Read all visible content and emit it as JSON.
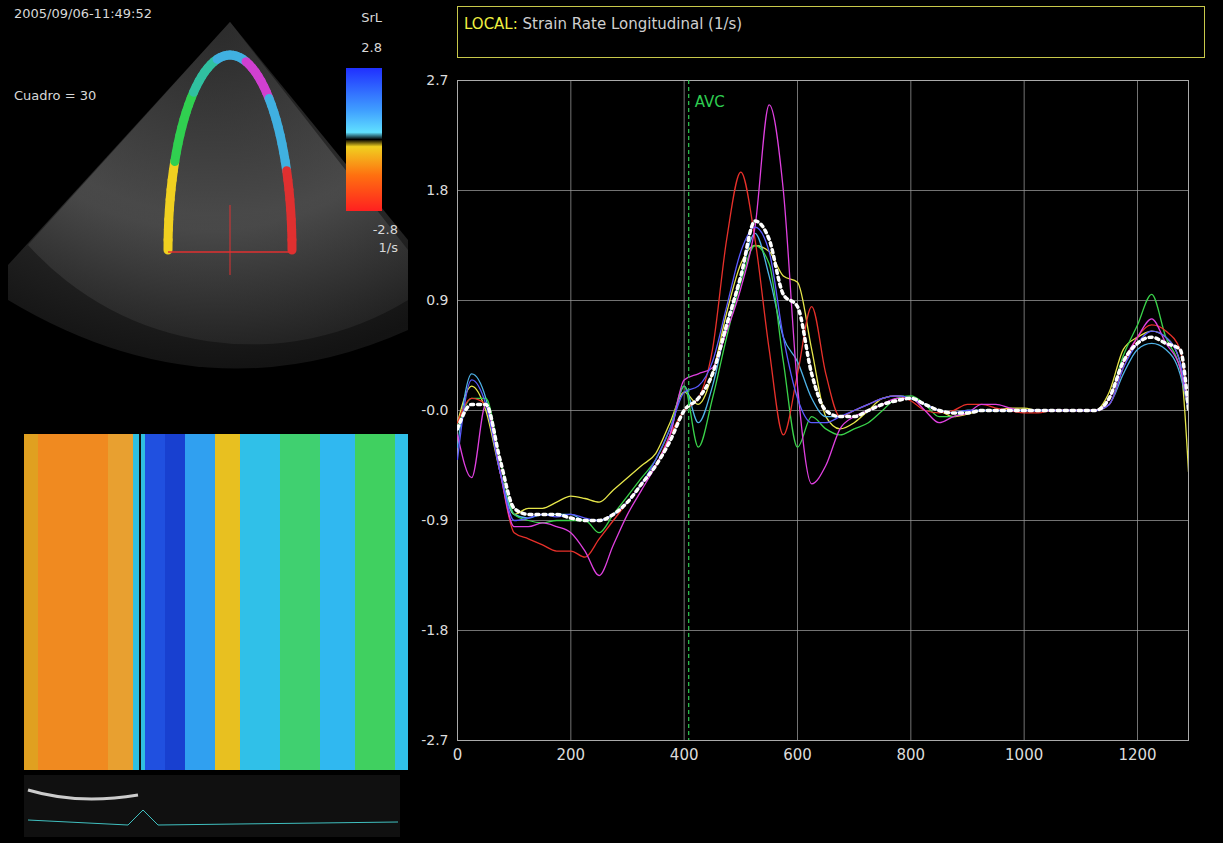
{
  "chart_data": {
    "type": "line",
    "title": "LOCAL: Strain Rate Longitudinal (1/s)",
    "xlim": [
      0,
      1290
    ],
    "xticks": [
      0,
      200,
      400,
      600,
      800,
      1000,
      1200
    ],
    "ylim": [
      -2.7,
      2.7
    ],
    "yticks": [
      -2.7,
      -1.8,
      -0.9,
      {
        "value": 0,
        "label": "-0.0"
      },
      0.9,
      1.8,
      2.7
    ],
    "grid": true,
    "x": [
      0,
      25,
      50,
      75,
      100,
      125,
      150,
      175,
      200,
      225,
      250,
      275,
      300,
      325,
      350,
      375,
      400,
      425,
      450,
      475,
      500,
      525,
      550,
      575,
      600,
      625,
      650,
      675,
      700,
      725,
      750,
      775,
      800,
      825,
      850,
      875,
      900,
      925,
      950,
      975,
      1000,
      1025,
      1050,
      1075,
      1100,
      1125,
      1150,
      1175,
      1200,
      1225,
      1250,
      1275,
      1290
    ],
    "series": [
      {
        "color": "#e6e64a",
        "values": [
          -0.1,
          0.2,
          0.0,
          -0.5,
          -0.85,
          -0.8,
          -0.8,
          -0.75,
          -0.7,
          -0.72,
          -0.75,
          -0.65,
          -0.55,
          -0.45,
          -0.35,
          -0.1,
          0.15,
          0.05,
          0.3,
          0.8,
          1.2,
          1.35,
          1.3,
          1.1,
          1.05,
          0.5,
          -0.05,
          -0.15,
          -0.1,
          0.0,
          0.1,
          0.12,
          0.1,
          0.05,
          0.0,
          -0.05,
          -0.03,
          0,
          0,
          0.02,
          0.02,
          0,
          0,
          0,
          0,
          0,
          0.15,
          0.5,
          0.6,
          0.65,
          0.6,
          0.4,
          -0.5
        ]
      },
      {
        "color": "#4fb3e8",
        "values": [
          -0.3,
          0.3,
          0.1,
          -0.5,
          -0.85,
          -0.88,
          -0.85,
          -0.85,
          -0.85,
          -0.9,
          -0.9,
          -0.85,
          -0.75,
          -0.6,
          -0.45,
          -0.2,
          0.2,
          -0.1,
          0.2,
          0.7,
          1.1,
          1.45,
          1.1,
          0.6,
          0.4,
          0.1,
          -0.05,
          -0.05,
          0.0,
          0.05,
          0.1,
          0.12,
          0.1,
          0.05,
          0,
          -0.02,
          0,
          0,
          0,
          0,
          0,
          0,
          0,
          0,
          0,
          0,
          0.05,
          0.3,
          0.5,
          0.55,
          0.5,
          0.3,
          0.0
        ]
      },
      {
        "color": "#3ad24a",
        "values": [
          -0.15,
          0.1,
          0.1,
          -0.4,
          -0.85,
          -0.9,
          -0.92,
          -0.9,
          -0.9,
          -0.9,
          -1.0,
          -0.85,
          -0.7,
          -0.55,
          -0.4,
          -0.15,
          0.2,
          -0.3,
          0.1,
          0.6,
          1.05,
          1.35,
          1.2,
          0.4,
          -0.3,
          -0.05,
          -0.15,
          -0.2,
          -0.15,
          -0.1,
          0.0,
          0.1,
          0.12,
          0.05,
          -0.05,
          -0.05,
          0,
          0,
          0,
          0,
          0,
          0,
          0,
          0,
          0,
          0,
          0.1,
          0.45,
          0.7,
          0.95,
          0.6,
          0.35,
          0.0
        ]
      },
      {
        "color": "#e8302a",
        "values": [
          -0.1,
          0.1,
          0.05,
          -0.5,
          -1.0,
          -1.05,
          -1.1,
          -1.15,
          -1.15,
          -1.2,
          -1.05,
          -0.9,
          -0.75,
          -0.6,
          -0.45,
          -0.2,
          0.0,
          0.1,
          0.5,
          1.4,
          1.95,
          1.4,
          0.5,
          -0.2,
          0.3,
          0.85,
          0.3,
          -0.05,
          0.0,
          0.05,
          0.1,
          0.12,
          0.08,
          0.0,
          -0.02,
          0.0,
          0.05,
          0.05,
          0.02,
          0,
          -0.02,
          -0.02,
          0,
          0,
          0,
          0,
          0.05,
          0.35,
          0.6,
          0.7,
          0.65,
          0.5,
          0.0
        ]
      },
      {
        "color": "#e040e0",
        "values": [
          -0.2,
          -0.55,
          0.05,
          -0.5,
          -0.95,
          -0.95,
          -0.92,
          -0.95,
          -1.0,
          -1.15,
          -1.35,
          -1.1,
          -0.85,
          -0.65,
          -0.45,
          -0.2,
          0.25,
          0.3,
          0.35,
          0.65,
          1.0,
          1.5,
          2.5,
          1.8,
          0.2,
          -0.6,
          -0.45,
          -0.15,
          -0.05,
          0.0,
          0.05,
          0.1,
          0.1,
          0.0,
          -0.1,
          -0.05,
          -0.02,
          0.05,
          0.05,
          0.02,
          0,
          0,
          0,
          0,
          0,
          0,
          0.1,
          0.4,
          0.6,
          0.75,
          0.55,
          0.35,
          0.0
        ]
      },
      {
        "color": "#5a5aff",
        "values": [
          -0.4,
          0.25,
          0.05,
          -0.5,
          -0.9,
          -0.88,
          -0.85,
          -0.87,
          -0.85,
          -0.88,
          -0.9,
          -0.85,
          -0.75,
          -0.6,
          -0.4,
          -0.15,
          0.15,
          0.2,
          0.4,
          0.85,
          1.3,
          1.5,
          1.3,
          0.6,
          0.1,
          -0.1,
          -0.1,
          -0.05,
          0.0,
          0.05,
          0.1,
          0.12,
          0.1,
          0.05,
          0,
          -0.02,
          0,
          0,
          0,
          0,
          0,
          0,
          0,
          0,
          0,
          0,
          0.05,
          0.35,
          0.55,
          0.65,
          0.6,
          0.4,
          0.0
        ]
      },
      {
        "color": "#ffffff",
        "line_style": "dotted",
        "values": [
          -0.15,
          0.05,
          0.05,
          -0.4,
          -0.8,
          -0.85,
          -0.85,
          -0.85,
          -0.88,
          -0.9,
          -0.9,
          -0.85,
          -0.75,
          -0.6,
          -0.45,
          -0.25,
          0.0,
          0.1,
          0.3,
          0.7,
          1.1,
          1.55,
          1.4,
          0.95,
          0.85,
          0.3,
          0.0,
          -0.05,
          -0.05,
          0.0,
          0.05,
          0.08,
          0.1,
          0.05,
          0.0,
          -0.02,
          -0.02,
          0.0,
          0.0,
          0.0,
          0.0,
          0.0,
          0.0,
          0.0,
          0.0,
          0.0,
          0.1,
          0.4,
          0.55,
          0.6,
          0.55,
          0.5,
          0.0
        ]
      }
    ],
    "annotations": [
      {
        "x": 408,
        "label": "AVC",
        "color": "#2ecc50"
      }
    ]
  },
  "echo_panel": {
    "timestamp": "2005/09/06-11:49:52",
    "frame": "Cuadro = 30",
    "colorbar": {
      "title": "SrL",
      "max": 2.8,
      "min": -2.8,
      "unit": "1/s"
    }
  }
}
